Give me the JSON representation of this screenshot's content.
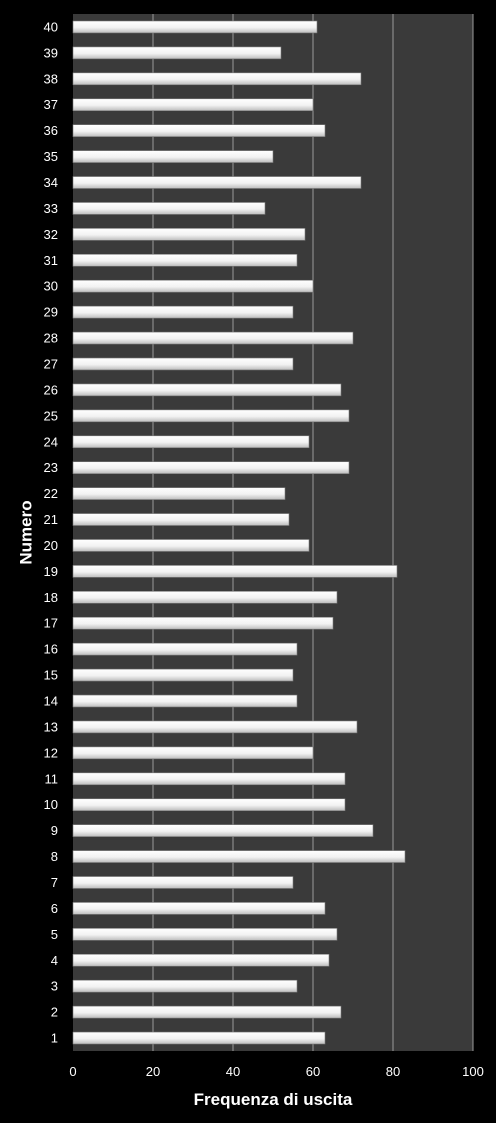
{
  "chart_data": {
    "type": "bar",
    "orientation": "horizontal",
    "xlabel": "Frequenza di uscita",
    "ylabel": "Numero",
    "xlim": [
      0,
      100
    ],
    "x_ticks": [
      0,
      20,
      40,
      60,
      80,
      100
    ],
    "grid": "vertical major gridlines",
    "legend": "none",
    "categories": [
      "1",
      "2",
      "3",
      "4",
      "5",
      "6",
      "7",
      "8",
      "9",
      "10",
      "11",
      "12",
      "13",
      "14",
      "15",
      "16",
      "17",
      "18",
      "19",
      "20",
      "21",
      "22",
      "23",
      "24",
      "25",
      "26",
      "27",
      "28",
      "29",
      "30",
      "31",
      "32",
      "33",
      "34",
      "35",
      "36",
      "37",
      "38",
      "39",
      "40"
    ],
    "values": [
      63,
      67,
      56,
      64,
      66,
      63,
      55,
      83,
      75,
      68,
      68,
      60,
      71,
      56,
      55,
      56,
      65,
      66,
      81,
      59,
      54,
      53,
      69,
      59,
      69,
      67,
      55,
      70,
      55,
      60,
      56,
      58,
      48,
      72,
      50,
      63,
      60,
      72,
      52,
      61
    ],
    "colors": {
      "background": "#000000",
      "plot_area": "#3a3a3a",
      "gridline": "#9a9a9a",
      "bar_fill": "#f2f2f2",
      "text": "#ffffff"
    }
  }
}
